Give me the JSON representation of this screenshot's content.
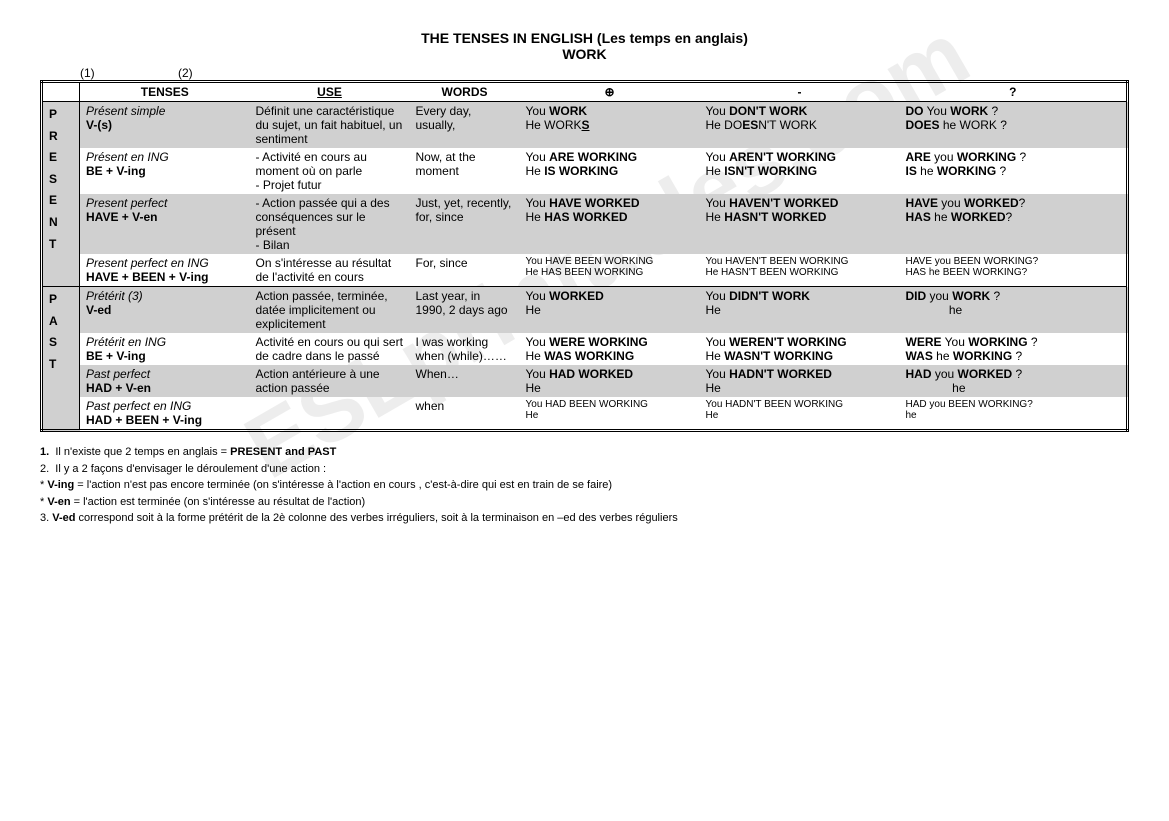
{
  "title_line1": "THE TENSES IN ENGLISH (Les temps en anglais)",
  "title_line2": "WORK",
  "col_marker1": "(1)",
  "col_marker2": "(2)",
  "headers": {
    "tenses": "TENSES",
    "use": "USE",
    "words": "WORDS",
    "plus": "⊕",
    "minus": "-",
    "question": "?"
  },
  "time_labels": {
    "present": "PRESENT",
    "past": "PAST"
  },
  "rows": [
    {
      "name": "Présent simple",
      "form": "V-(s)",
      "use": "Définit une caractéristique du sujet, un fait habituel, un sentiment",
      "words": "Every day, usually,",
      "plus_you_pre": "You ",
      "plus_you_b": "WORK",
      "plus_he_pre": "He WORK",
      "plus_he_b": "",
      "plus_he_u": "S",
      "minus_you_pre": "You ",
      "minus_you_b": "DON'T WORK",
      "minus_he_pre": "He DO",
      "minus_he_b": "ES",
      "minus_he_post": "N'T WORK",
      "q_you_b": "DO",
      "q_you_post": " You ",
      "q_you_b2": "WORK",
      "q_you_end": " ?",
      "q_he_b": "DOES",
      "q_he_post": " he WORK ?"
    },
    {
      "name": "Présent en ING",
      "form": "BE + V-ing",
      "use": "- Activité en cours au moment où on parle\n- Projet futur",
      "words": "Now, at the moment",
      "plus_you_pre": "You ",
      "plus_you_b": "ARE WORKING",
      "plus_he_pre": "He ",
      "plus_he_b": "IS WORKING",
      "minus_you_pre": "You ",
      "minus_you_b": "AREN'T WORKING",
      "minus_he_pre": "He ",
      "minus_he_b": "ISN'T WORKING",
      "q_you_b": "ARE",
      "q_you_post": " you ",
      "q_you_b2": "WORKING",
      "q_you_end": " ?",
      "q_he_b": "IS",
      "q_he_post": " he ",
      "q_he_b2": "WORKING",
      "q_he_end": " ?"
    },
    {
      "name": "Present perfect",
      "form": "HAVE + V-en",
      "use": "- Action passée qui a des conséquences sur le présent\n- Bilan",
      "words": "Just, yet, recently, for, since",
      "plus_you_pre": "You ",
      "plus_you_b": "HAVE WORKED",
      "plus_he_pre": "He ",
      "plus_he_b": "HAS WORKED",
      "minus_you_pre": "You ",
      "minus_you_b": "HAVEN'T WORKED",
      "minus_he_pre": "He ",
      "minus_he_b": "HASN'T WORKED",
      "q_you_b": "HAVE",
      "q_you_post": " you ",
      "q_you_b2": "WORKED",
      "q_you_end": "?",
      "q_he_b": "HAS",
      "q_he_post": " he ",
      "q_he_b2": "WORKED",
      "q_he_end": "?"
    },
    {
      "name": "Present perfect en ING",
      "form": "HAVE + BEEN + V-ing",
      "use": "On s'intéresse au résultat de l'activité en cours",
      "words": "For, since",
      "small": true,
      "plus_you": "You HAVE BEEN WORKING",
      "plus_he": "He HAS BEEN WORKING",
      "minus_you": "You HAVEN'T BEEN WORKING",
      "minus_he": "He HASN'T BEEN WORKING",
      "q_you": "HAVE you BEEN WORKING?",
      "q_he": "HAS he BEEN WORKING?"
    },
    {
      "name": "Prétérit (3)",
      "form": "V-ed",
      "use": "Action passée, terminée, datée implicitement ou explicitement",
      "words": "Last year, in 1990, 2 days ago",
      "plus_you_pre": "You ",
      "plus_you_b": "WORKED",
      "plus_he_pre": "He",
      "minus_you_pre": "You ",
      "minus_you_b": "DIDN'T WORK",
      "minus_he_pre": "He",
      "q_you_b": "DID",
      "q_you_post": " you ",
      "q_you_b2": "WORK",
      "q_you_end": " ?",
      "q_he_post": "             he"
    },
    {
      "name": "Prétérit en ING",
      "form": "BE + V-ing",
      "use": "Activité en cours ou qui sert de cadre dans le passé",
      "words": "I was working when (while)……",
      "plus_you_pre": "You ",
      "plus_you_b": "WERE WORKING",
      "plus_he_pre": "He ",
      "plus_he_b": "WAS WORKING",
      "minus_you_pre": "You ",
      "minus_you_b": "WEREN'T WORKING",
      "minus_he_pre": "He ",
      "minus_he_b": "WASN'T WORKING",
      "q_you_b": "WERE",
      "q_you_post": " You ",
      "q_you_b2": "WORKING",
      "q_you_end": " ?",
      "q_he_b": "WAS",
      "q_he_post": " he ",
      "q_he_b2": "WORKING",
      "q_he_end": " ?"
    },
    {
      "name": "Past perfect",
      "form": "HAD + V-en",
      "use": "Action antérieure à une action passée",
      "words": "When…",
      "plus_you_pre": "You ",
      "plus_you_b": "HAD WORKED",
      "plus_he_pre": "He",
      "minus_you_pre": "You ",
      "minus_you_b": "HADN'T WORKED",
      "minus_he_pre": "He",
      "q_you_b": "HAD",
      "q_you_post": " you ",
      "q_you_b2": "WORKED",
      "q_you_end": " ?",
      "q_he_post": "              he"
    },
    {
      "name": "Past perfect en ING",
      "form": "HAD + BEEN + V-ing",
      "use": "",
      "words": "when",
      "small": true,
      "plus_you": "You HAD BEEN WORKING",
      "plus_he": "He",
      "minus_you": "You HADN'T BEEN WORKING",
      "minus_he": "He",
      "q_you": "HAD you BEEN WORKING?",
      "q_he": "               he"
    }
  ],
  "notes": {
    "n1_pre": "Il n'existe que 2 temps en anglais = ",
    "n1_b": "PRESENT and PAST",
    "n2": "Il y a 2 façons d'envisager le déroulement d'une action :",
    "n3_b": "V-ing",
    "n3": " = l'action n'est pas encore terminée (on s'intéresse à l'action en cours , c'est-à-dire qui est en train de se faire)",
    "n4_b": "V-en",
    "n4": " = l'action est terminée (on s'intéresse au résultat de l'action)",
    "n5_b": "V-ed",
    "n5": " correspond soit à la forme  prétérit de la 2è colonne des verbes irréguliers, soit à la terminaison en –ed des verbes réguliers"
  },
  "watermark": "ESLprintables.com"
}
